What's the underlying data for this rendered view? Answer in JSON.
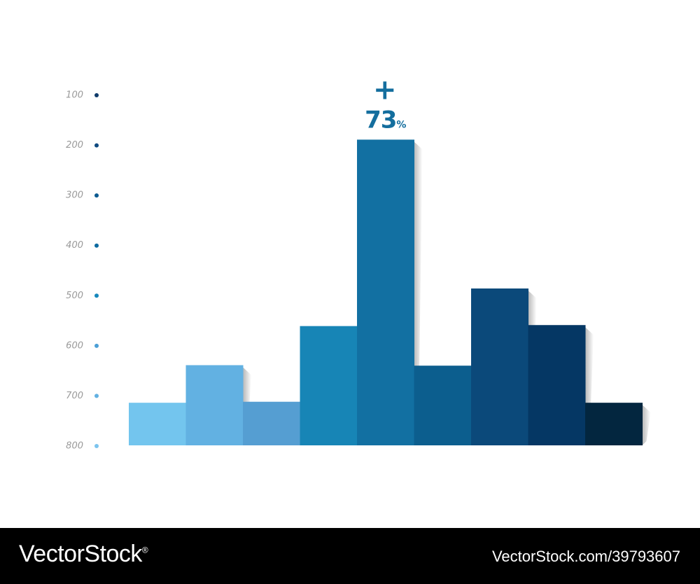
{
  "chart_data": {
    "type": "bar",
    "title": "",
    "xlabel": "",
    "ylabel": "",
    "y_ticks": [
      "100",
      "200",
      "300",
      "400",
      "500",
      "600",
      "700",
      "800"
    ],
    "y_axis_direction": "descending (100 at top, 800 at bottom)",
    "ylim": [
      100,
      800
    ],
    "grid": false,
    "legend": "none",
    "values": [
      715,
      640,
      713,
      562,
      190,
      641,
      487,
      560,
      715
    ],
    "colors": [
      "#73c5ee",
      "#62b1e2",
      "#559ed2",
      "#1785b6",
      "#1270a2",
      "#0c5e8e",
      "#0b497a",
      "#053764",
      "#03263f"
    ],
    "annotation": {
      "bar_index": 4,
      "sign": "+",
      "value": "73",
      "unit": "%"
    }
  },
  "tick_dot_colors": [
    "#0f3b6a",
    "#0f4a80",
    "#0b5a90",
    "#0c6aa0",
    "#1688bc",
    "#4b9fd6",
    "#62b1e2",
    "#7cc4ee"
  ],
  "watermark": {
    "brand": "VectorStock",
    "brand_mark": "®",
    "image_id": "VectorStock.com/39793607"
  }
}
